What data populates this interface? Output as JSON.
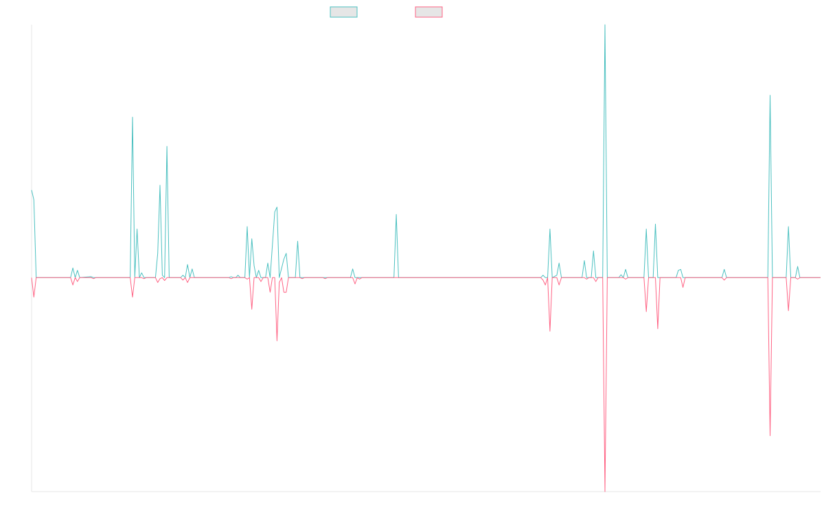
{
  "chart_data": {
    "type": "line",
    "title": "",
    "xlabel": "",
    "ylabel": "",
    "grid": false,
    "legend": {
      "placement": "top-center"
    },
    "x_range": [
      0,
      344
    ],
    "ylim": [
      -4.4,
      5.2
    ],
    "series": [
      {
        "color": "#4bc0c0",
        "fill": "#e6e6e6",
        "points": [
          [
            0,
            1.8
          ],
          [
            1,
            1.6
          ],
          [
            2,
            0
          ],
          [
            17,
            0
          ],
          [
            18,
            0.2
          ],
          [
            19,
            0
          ],
          [
            20,
            0.15
          ],
          [
            21,
            0
          ],
          [
            26,
            0.02
          ],
          [
            27,
            0
          ],
          [
            43,
            0
          ],
          [
            44,
            3.3
          ],
          [
            45,
            0
          ],
          [
            46,
            1.0
          ],
          [
            47,
            0
          ],
          [
            48,
            0.1
          ],
          [
            49,
            0
          ],
          [
            54,
            0
          ],
          [
            55,
            0.5
          ],
          [
            56,
            1.9
          ],
          [
            57,
            0.05
          ],
          [
            58,
            0
          ],
          [
            59,
            2.7
          ],
          [
            60,
            0
          ],
          [
            65,
            0
          ],
          [
            66,
            0.05
          ],
          [
            67,
            0
          ],
          [
            68,
            0.27
          ],
          [
            69,
            0
          ],
          [
            70,
            0.18
          ],
          [
            71,
            0
          ],
          [
            86,
            0
          ],
          [
            87,
            0.02
          ],
          [
            88,
            0
          ],
          [
            89,
            0
          ],
          [
            90,
            0.05
          ],
          [
            91,
            0
          ],
          [
            93,
            0
          ],
          [
            94,
            1.05
          ],
          [
            95,
            0
          ],
          [
            96,
            0.8
          ],
          [
            97,
            0.25
          ],
          [
            98,
            0
          ],
          [
            99,
            0.15
          ],
          [
            100,
            0
          ],
          [
            102,
            0
          ],
          [
            103,
            0.3
          ],
          [
            104,
            0
          ],
          [
            106,
            1.35
          ],
          [
            107,
            1.45
          ],
          [
            108,
            0
          ],
          [
            110,
            0.38
          ],
          [
            111,
            0.5
          ],
          [
            112,
            0
          ],
          [
            115,
            0
          ],
          [
            116,
            0.75
          ],
          [
            117,
            0
          ],
          [
            139,
            0
          ],
          [
            140,
            0.18
          ],
          [
            141,
            0
          ],
          [
            158,
            0
          ],
          [
            159,
            1.3
          ],
          [
            160,
            0
          ],
          [
            222,
            0
          ],
          [
            223,
            0.05
          ],
          [
            224,
            0
          ],
          [
            225,
            0
          ],
          [
            226,
            1.0
          ],
          [
            227,
            0
          ],
          [
            229,
            0.05
          ],
          [
            230,
            0.3
          ],
          [
            231,
            0
          ],
          [
            240,
            0
          ],
          [
            241,
            0.35
          ],
          [
            242,
            0
          ],
          [
            244,
            0
          ],
          [
            245,
            0.55
          ],
          [
            246,
            0
          ],
          [
            249,
            0
          ],
          [
            250,
            5.2
          ],
          [
            251,
            0
          ],
          [
            256,
            0
          ],
          [
            257,
            0.06
          ],
          [
            258,
            0
          ],
          [
            259,
            0.17
          ],
          [
            260,
            0
          ],
          [
            267,
            0
          ],
          [
            268,
            1.0
          ],
          [
            269,
            0
          ],
          [
            271,
            0
          ],
          [
            272,
            1.1
          ],
          [
            273,
            0
          ],
          [
            281,
            0
          ],
          [
            282,
            0.15
          ],
          [
            283,
            0.17
          ],
          [
            284,
            0
          ],
          [
            301,
            0
          ],
          [
            302,
            0.17
          ],
          [
            303,
            0
          ],
          [
            321,
            0
          ],
          [
            322,
            3.75
          ],
          [
            323,
            0
          ],
          [
            329,
            0
          ],
          [
            330,
            1.05
          ],
          [
            331,
            0
          ],
          [
            333,
            0
          ],
          [
            334,
            0.23
          ],
          [
            335,
            0
          ],
          [
            344,
            0
          ]
        ]
      },
      {
        "color": "#ff6384",
        "fill": "#e6e6e6",
        "points": [
          [
            0,
            0
          ],
          [
            1,
            -0.4
          ],
          [
            2,
            0
          ],
          [
            17,
            0
          ],
          [
            18,
            -0.15
          ],
          [
            19,
            0
          ],
          [
            20,
            -0.08
          ],
          [
            21,
            0
          ],
          [
            26,
            0
          ],
          [
            27,
            -0.02
          ],
          [
            28,
            0
          ],
          [
            43,
            0
          ],
          [
            44,
            -0.4
          ],
          [
            45,
            0
          ],
          [
            48,
            0
          ],
          [
            49,
            -0.02
          ],
          [
            50,
            0
          ],
          [
            54,
            0
          ],
          [
            55,
            -0.1
          ],
          [
            56,
            -0.02
          ],
          [
            57,
            0
          ],
          [
            58,
            -0.06
          ],
          [
            59,
            0
          ],
          [
            65,
            0
          ],
          [
            66,
            -0.05
          ],
          [
            67,
            0
          ],
          [
            68,
            -0.1
          ],
          [
            69,
            0
          ],
          [
            86,
            0
          ],
          [
            87,
            -0.02
          ],
          [
            88,
            0
          ],
          [
            93,
            0
          ],
          [
            94,
            -0.03
          ],
          [
            95,
            0
          ],
          [
            96,
            -0.65
          ],
          [
            97,
            0
          ],
          [
            99,
            0
          ],
          [
            100,
            -0.08
          ],
          [
            101,
            0
          ],
          [
            103,
            0
          ],
          [
            104,
            -0.3
          ],
          [
            105,
            0
          ],
          [
            106,
            0
          ],
          [
            107,
            -1.3
          ],
          [
            108,
            -0.1
          ],
          [
            109,
            0
          ],
          [
            110,
            -0.3
          ],
          [
            111,
            -0.3
          ],
          [
            112,
            0
          ],
          [
            117,
            0
          ],
          [
            118,
            -0.02
          ],
          [
            119,
            0
          ],
          [
            127,
            0
          ],
          [
            128,
            -0.02
          ],
          [
            129,
            0
          ],
          [
            140,
            0
          ],
          [
            141,
            -0.13
          ],
          [
            142,
            0
          ],
          [
            143,
            -0.03
          ],
          [
            144,
            0
          ],
          [
            222,
            0
          ],
          [
            223,
            -0.05
          ],
          [
            224,
            -0.15
          ],
          [
            225,
            0
          ],
          [
            226,
            -1.1
          ],
          [
            227,
            0
          ],
          [
            229,
            0
          ],
          [
            230,
            -0.15
          ],
          [
            231,
            0
          ],
          [
            241,
            0
          ],
          [
            242,
            -0.03
          ],
          [
            243,
            0
          ],
          [
            245,
            0
          ],
          [
            246,
            -0.08
          ],
          [
            247,
            0
          ],
          [
            249,
            0
          ],
          [
            250,
            -4.4
          ],
          [
            251,
            0
          ],
          [
            258,
            0
          ],
          [
            259,
            -0.03
          ],
          [
            260,
            0
          ],
          [
            267,
            0
          ],
          [
            268,
            -0.7
          ],
          [
            269,
            0
          ],
          [
            272,
            0
          ],
          [
            273,
            -1.05
          ],
          [
            274,
            0
          ],
          [
            283,
            0
          ],
          [
            284,
            -0.2
          ],
          [
            285,
            0
          ],
          [
            301,
            0
          ],
          [
            302,
            -0.05
          ],
          [
            303,
            0
          ],
          [
            321,
            0
          ],
          [
            322,
            -3.25
          ],
          [
            323,
            0
          ],
          [
            329,
            0
          ],
          [
            330,
            -0.68
          ],
          [
            331,
            0
          ],
          [
            333,
            0
          ],
          [
            334,
            -0.03
          ],
          [
            335,
            0
          ],
          [
            344,
            0
          ]
        ]
      }
    ]
  }
}
